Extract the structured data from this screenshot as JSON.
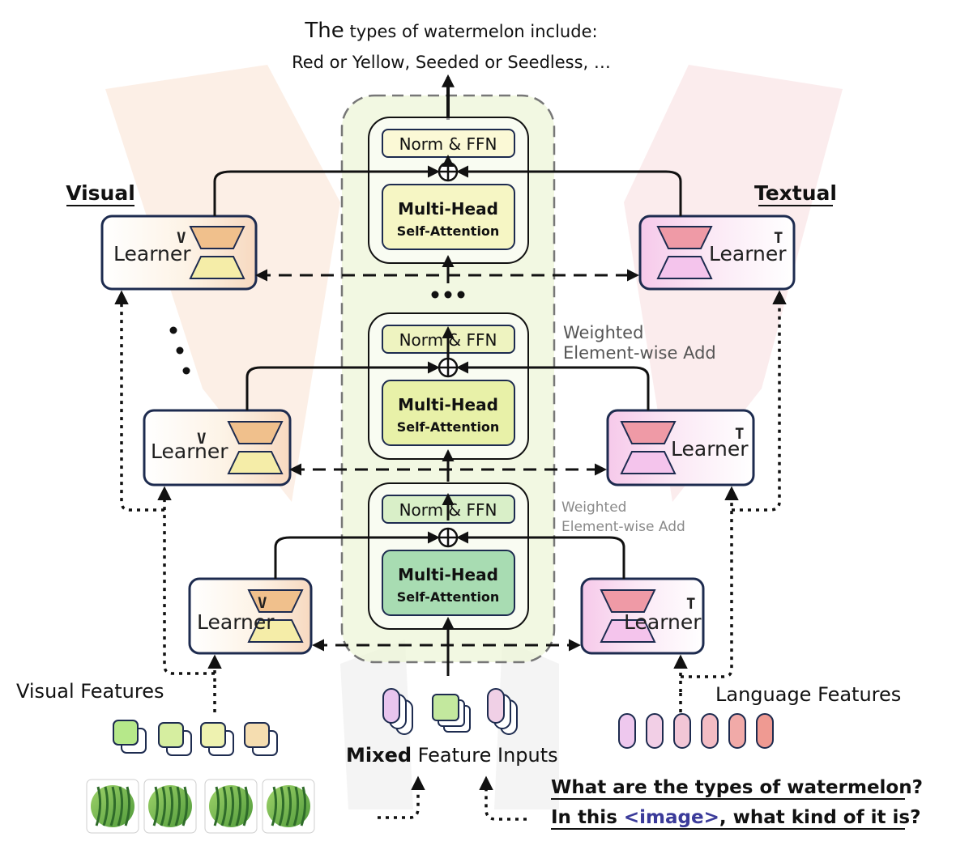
{
  "output_text": {
    "line1_prefix": "The",
    "line1_rest": " types of watermelon include:",
    "line2": "Red or Yellow, Seeded or Seedless, …"
  },
  "side_labels": {
    "visual": "Visual",
    "textual": "Textual"
  },
  "blocks": [
    {
      "norm": "Norm & FFN",
      "attn1": "Multi-Head",
      "attn2": "Self-Attention",
      "color_norm": "#fbf9d6",
      "color_attn": "#f6f6c4"
    },
    {
      "norm": "Norm & FFN",
      "attn1": "Multi-Head",
      "attn2": "Self-Attention",
      "color_norm": "#eef3c0",
      "color_attn": "#e8f1a8"
    },
    {
      "norm": "Norm & FFN",
      "attn1": "Multi-Head",
      "attn2": "Self-Attention",
      "color_norm": "#d9efc8",
      "color_attn": "#a8dcb2"
    }
  ],
  "weighted_labels": [
    {
      "line1": "Weighted",
      "line2": "Element-wise Add",
      "color": "#555555"
    },
    {
      "line1": "Weighted",
      "line2": "Element-wise Add",
      "color": "#8a8a8a"
    }
  ],
  "learners": {
    "visual": {
      "word": "Learner",
      "sup": "V"
    },
    "textual": {
      "word": "Learner",
      "sup": "T"
    }
  },
  "features": {
    "visual": "Visual Features",
    "language": "Language Features",
    "mixed_bold": "Mixed",
    "mixed_rest": " Feature Inputs"
  },
  "questions": {
    "q1": "What are the types of watermelon?",
    "q2_prefix": "In this ",
    "q2_image": "<image>",
    "q2_suffix": ", what kind of it is?",
    "image_token_color": "#3b3b9a"
  },
  "colors": {
    "border": "#1d2b4f",
    "visual_trap_top": "#f0c08c",
    "visual_trap_bottom": "#f5eda8",
    "textual_trap_top": "#ef9aa6",
    "textual_trap_bottom": "#f4c4ec",
    "panel_fill": "#eef6d8"
  }
}
